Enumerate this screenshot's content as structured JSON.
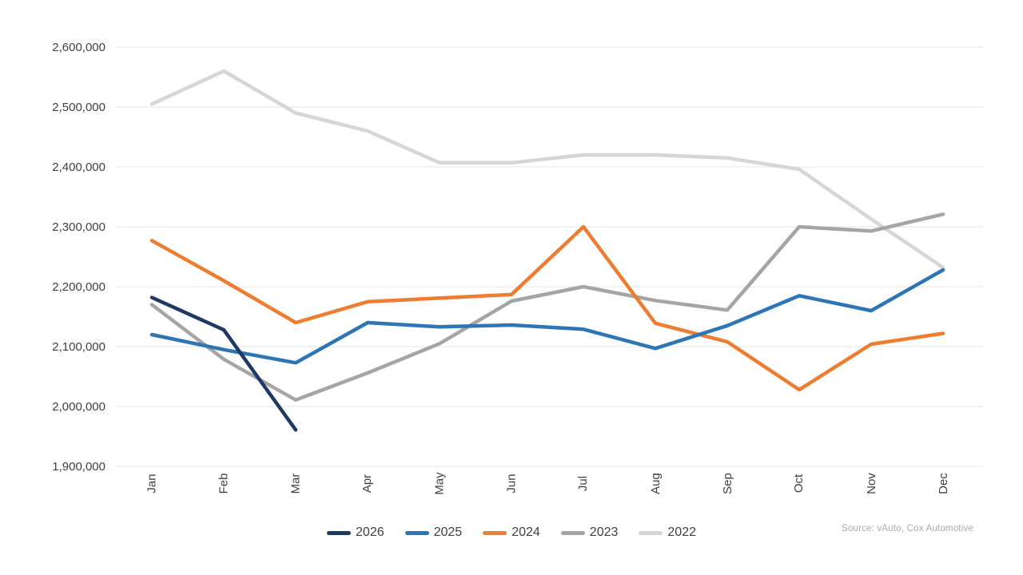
{
  "chart_data": {
    "type": "line",
    "title": "",
    "categories": [
      "Jan",
      "Feb",
      "Mar",
      "Apr",
      "May",
      "Jun",
      "Jul",
      "Aug",
      "Sep",
      "Oct",
      "Nov",
      "Dec"
    ],
    "y_axis": {
      "min": 1900000,
      "max": 2600000,
      "step": 100000,
      "tick_labels": [
        "2,600,000",
        "2,500,000",
        "2,400,000",
        "2,300,000",
        "2,200,000",
        "2,100,000",
        "2,000,000",
        "1,900,000"
      ]
    },
    "grid": true,
    "legend_position": "bottom",
    "series": [
      {
        "name": "2026",
        "color": "#1f3864",
        "values": [
          2182000,
          2128000,
          1961000,
          null,
          null,
          null,
          null,
          null,
          null,
          null,
          null,
          null
        ]
      },
      {
        "name": "2025",
        "color": "#2e75b6",
        "values": [
          2120000,
          2095000,
          2073000,
          2140000,
          2133000,
          2136000,
          2129000,
          2097000,
          2135000,
          2185000,
          2160000,
          2228000
        ]
      },
      {
        "name": "2024",
        "color": "#ed7d31",
        "values": [
          2277000,
          2210000,
          2140000,
          2175000,
          2181000,
          2187000,
          2300000,
          2139000,
          2108000,
          2028000,
          2104000,
          2122000
        ]
      },
      {
        "name": "2023",
        "color": "#a5a5a5",
        "values": [
          2170000,
          2079000,
          2011000,
          2056000,
          2105000,
          2176000,
          2200000,
          2177000,
          2161000,
          2300000,
          2293000,
          2321000
        ]
      },
      {
        "name": "2022",
        "color": "#d6d6d6",
        "values": [
          2505000,
          2560000,
          2490000,
          2460000,
          2407000,
          2407000,
          2420000,
          2420000,
          2415000,
          2396000,
          2313000,
          2232000
        ]
      }
    ]
  },
  "source_note": "Source: vAuto, Cox Automotive"
}
